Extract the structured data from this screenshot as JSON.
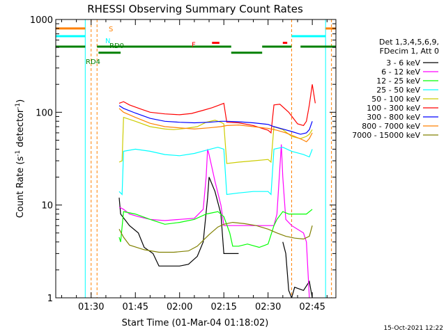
{
  "chart_data": {
    "type": "line",
    "title": "RHESSI Observing Summary Count Rates",
    "xlabel": "Start Time (01-Mar-04 01:18:02)",
    "ylabel_prefix": "Count Rate (s",
    "ylabel_sup": "-1",
    "ylabel_suffix": " detector",
    "ylabel_end": ")",
    "y_scale": "log",
    "ylim": [
      1,
      1000
    ],
    "xlim_minutes": [
      78,
      173
    ],
    "x_ticks": [
      {
        "minute": 90,
        "label": "01:30"
      },
      {
        "minute": 105,
        "label": "01:45"
      },
      {
        "minute": 120,
        "label": "02:00"
      },
      {
        "minute": 135,
        "label": "02:15"
      },
      {
        "minute": 150,
        "label": "02:30"
      },
      {
        "minute": 165,
        "label": "02:45"
      }
    ],
    "y_ticks": [
      {
        "value": 1,
        "label": "1"
      },
      {
        "value": 10,
        "label": "10"
      },
      {
        "value": 100,
        "label": "100"
      },
      {
        "value": 1000,
        "label": "1000"
      }
    ],
    "legend_header": [
      "Det 1,3,4,5,6,9,",
      "FDecim 1, Att 0"
    ],
    "series": [
      {
        "name": "3 - 6 keV",
        "color": "#000000",
        "segments": [
          [
            [
              99.5,
              12
            ],
            [
              100,
              8
            ],
            [
              103,
              6
            ],
            [
              106,
              5
            ],
            [
              108,
              3.5
            ],
            [
              111,
              3
            ],
            [
              113,
              2.2
            ],
            [
              117,
              2.2
            ],
            [
              120,
              2.2
            ],
            [
              123,
              2.3
            ],
            [
              126,
              2.8
            ],
            [
              128,
              4
            ],
            [
              129.5,
              12
            ],
            [
              130,
              20
            ],
            [
              132,
              14
            ],
            [
              134,
              8
            ],
            [
              135,
              3
            ],
            [
              137,
              3
            ],
            [
              140,
              3
            ]
          ],
          [
            [
              155,
              4
            ],
            [
              156,
              3
            ],
            [
              157,
              1.2
            ],
            [
              158,
              1
            ],
            [
              159,
              1.3
            ],
            [
              162,
              1.2
            ],
            [
              164,
              1.5
            ],
            [
              165,
              1
            ]
          ]
        ]
      },
      {
        "name": "6 - 12 keV",
        "color": "#ff00ff",
        "segments": [
          [
            [
              99.5,
              9.5
            ],
            [
              101,
              9
            ],
            [
              103,
              8
            ],
            [
              106,
              7.5
            ],
            [
              110,
              7
            ],
            [
              115,
              6.8
            ],
            [
              120,
              7
            ],
            [
              125,
              7.2
            ],
            [
              128,
              9
            ],
            [
              129,
              20
            ],
            [
              129.5,
              40
            ],
            [
              130,
              35
            ],
            [
              132,
              18
            ],
            [
              134,
              10
            ],
            [
              135,
              6
            ],
            [
              137,
              6
            ],
            [
              140,
              6
            ],
            [
              145,
              6
            ],
            [
              150,
              6
            ],
            [
              152,
              6
            ],
            [
              153,
              8
            ],
            [
              154.5,
              45
            ],
            [
              155,
              20
            ],
            [
              156,
              7
            ],
            [
              158,
              6
            ],
            [
              162,
              5
            ],
            [
              163,
              4
            ],
            [
              164,
              1
            ]
          ]
        ]
      },
      {
        "name": "12 - 25 keV",
        "color": "#00ff00",
        "segments": [
          [
            [
              99.5,
              4.5
            ],
            [
              100,
              4
            ],
            [
              101,
              8.5
            ],
            [
              105,
              8
            ],
            [
              110,
              7
            ],
            [
              115,
              6.2
            ],
            [
              120,
              6.5
            ],
            [
              125,
              7
            ],
            [
              129,
              8
            ],
            [
              133,
              8.5
            ],
            [
              135,
              7.5
            ],
            [
              137,
              5
            ],
            [
              138,
              3.6
            ],
            [
              140,
              3.6
            ],
            [
              143,
              3.8
            ],
            [
              147,
              3.5
            ],
            [
              150,
              3.8
            ],
            [
              152,
              6
            ],
            [
              153,
              7
            ],
            [
              155,
              8.5
            ],
            [
              157,
              8
            ],
            [
              160,
              8
            ],
            [
              163,
              8
            ],
            [
              165,
              9
            ]
          ]
        ]
      },
      {
        "name": "25 - 50 keV",
        "color": "#00ffff",
        "segments": [
          [
            [
              99.5,
              14
            ],
            [
              100.5,
              13
            ],
            [
              101,
              38
            ],
            [
              105,
              40
            ],
            [
              110,
              38
            ],
            [
              115,
              35
            ],
            [
              120,
              34
            ],
            [
              125,
              36
            ],
            [
              129,
              39
            ],
            [
              133,
              42
            ],
            [
              135,
              40
            ],
            [
              136,
              13
            ],
            [
              140,
              13.5
            ],
            [
              145,
              14
            ],
            [
              150,
              14
            ],
            [
              151,
              13
            ],
            [
              152,
              40
            ],
            [
              155,
              42
            ],
            [
              158,
              38
            ],
            [
              162,
              35
            ],
            [
              164,
              33
            ],
            [
              165,
              40
            ]
          ]
        ]
      },
      {
        "name": "50 - 100 keV",
        "color": "#cccc00",
        "segments": [
          [
            [
              99.5,
              29
            ],
            [
              100.5,
              30
            ],
            [
              101,
              88
            ],
            [
              105,
              80
            ],
            [
              110,
              70
            ],
            [
              115,
              66
            ],
            [
              118,
              65
            ],
            [
              122,
              67
            ],
            [
              126,
              70
            ],
            [
              129,
              78
            ],
            [
              132,
              82
            ],
            [
              134,
              78
            ],
            [
              135,
              75
            ],
            [
              136,
              28
            ],
            [
              140,
              29
            ],
            [
              145,
              30
            ],
            [
              150,
              31
            ],
            [
              151,
              29
            ],
            [
              152,
              70
            ],
            [
              155,
              65
            ],
            [
              158,
              55
            ],
            [
              161,
              52
            ],
            [
              163,
              55
            ],
            [
              164,
              58
            ],
            [
              165,
              65
            ]
          ]
        ]
      },
      {
        "name": "100 - 300 keV",
        "color": "#ff0000",
        "segments": [
          [
            [
              99.5,
              125
            ],
            [
              101,
              130
            ],
            [
              103,
              120
            ],
            [
              107,
              108
            ],
            [
              110,
              100
            ],
            [
              115,
              96
            ],
            [
              120,
              94
            ],
            [
              124,
              97
            ],
            [
              128,
              105
            ],
            [
              131,
              112
            ],
            [
              133,
              118
            ],
            [
              135,
              125
            ],
            [
              136,
              78
            ],
            [
              140,
              77
            ],
            [
              145,
              72
            ],
            [
              150,
              64
            ],
            [
              151,
              60
            ],
            [
              152,
              120
            ],
            [
              154,
              122
            ],
            [
              157,
              100
            ],
            [
              160,
              75
            ],
            [
              162,
              72
            ],
            [
              163,
              80
            ],
            [
              164,
              120
            ],
            [
              165,
              200
            ],
            [
              166,
              125
            ]
          ]
        ]
      },
      {
        "name": "300 - 800 keV",
        "color": "#0000ff",
        "segments": [
          [
            [
              99.5,
              118
            ],
            [
              101,
              110
            ],
            [
              105,
              98
            ],
            [
              110,
              86
            ],
            [
              115,
              80
            ],
            [
              120,
              78
            ],
            [
              125,
              77
            ],
            [
              130,
              78
            ],
            [
              134,
              80
            ],
            [
              136,
              80
            ],
            [
              140,
              79
            ],
            [
              145,
              77
            ],
            [
              150,
              74
            ],
            [
              152,
              70
            ],
            [
              155,
              66
            ],
            [
              158,
              62
            ],
            [
              161,
              58
            ],
            [
              163,
              60
            ],
            [
              164,
              65
            ],
            [
              165,
              80
            ]
          ]
        ]
      },
      {
        "name": "800 - 7000 keV",
        "color": "#ff8000",
        "segments": [
          [
            [
              99.5,
              110
            ],
            [
              101,
              100
            ],
            [
              105,
              88
            ],
            [
              110,
              76
            ],
            [
              115,
              70
            ],
            [
              120,
              68
            ],
            [
              125,
              66
            ],
            [
              130,
              68
            ],
            [
              134,
              70
            ],
            [
              136,
              72
            ],
            [
              140,
              73
            ],
            [
              145,
              70
            ],
            [
              150,
              67
            ],
            [
              153,
              64
            ],
            [
              156,
              60
            ],
            [
              159,
              55
            ],
            [
              162,
              50
            ],
            [
              163,
              48
            ],
            [
              164,
              52
            ],
            [
              165,
              60
            ]
          ]
        ]
      },
      {
        "name": "7000 - 15000 keV",
        "color": "#808000",
        "segments": [
          [
            [
              99.5,
              5.5
            ],
            [
              101,
              4.5
            ],
            [
              103,
              3.7
            ],
            [
              108,
              3.3
            ],
            [
              113,
              3.1
            ],
            [
              118,
              3.1
            ],
            [
              123,
              3.2
            ],
            [
              126,
              3.6
            ],
            [
              130,
              4.8
            ],
            [
              133,
              5.8
            ],
            [
              135,
              6.2
            ],
            [
              138,
              6.5
            ],
            [
              142,
              6.3
            ],
            [
              146,
              6
            ],
            [
              150,
              5.5
            ],
            [
              153,
              5
            ],
            [
              156,
              4.6
            ],
            [
              159,
              4.4
            ],
            [
              162,
              4.3
            ],
            [
              164,
              4.6
            ],
            [
              165,
              6
            ]
          ]
        ]
      }
    ],
    "mode_bars": [
      {
        "label": "S",
        "color": "#ff8000",
        "value": 800,
        "segments": [
          [
            78,
            88
          ],
          [
            169.5,
            173
          ]
        ]
      },
      {
        "label": "N",
        "color": "#00ffff",
        "value": 660,
        "segments": [
          [
            78,
            88
          ],
          [
            158,
            169.5
          ]
        ]
      },
      {
        "label": "F",
        "color": "#ff0000",
        "value": 560,
        "segments": [
          [
            131,
            133.5
          ],
          [
            155,
            156.5
          ]
        ]
      },
      {
        "label": "RD0",
        "color": "#008000",
        "value": 510,
        "segments": [
          [
            78,
            88
          ],
          [
            92,
            137.5
          ],
          [
            148,
            158
          ],
          [
            161,
            173
          ]
        ]
      },
      {
        "label": "RD4",
        "color": "#008000",
        "value": 438,
        "segments": [
          [
            92.5,
            100
          ],
          [
            137.5,
            148
          ]
        ]
      }
    ],
    "vlines_solid_cyan": [
      88,
      169.5
    ],
    "vlines_dashed_orange": [
      90,
      92,
      158,
      171.5
    ],
    "grid": false,
    "legend_placement": "right",
    "timestamp": "15-Oct-2021 12:22"
  }
}
